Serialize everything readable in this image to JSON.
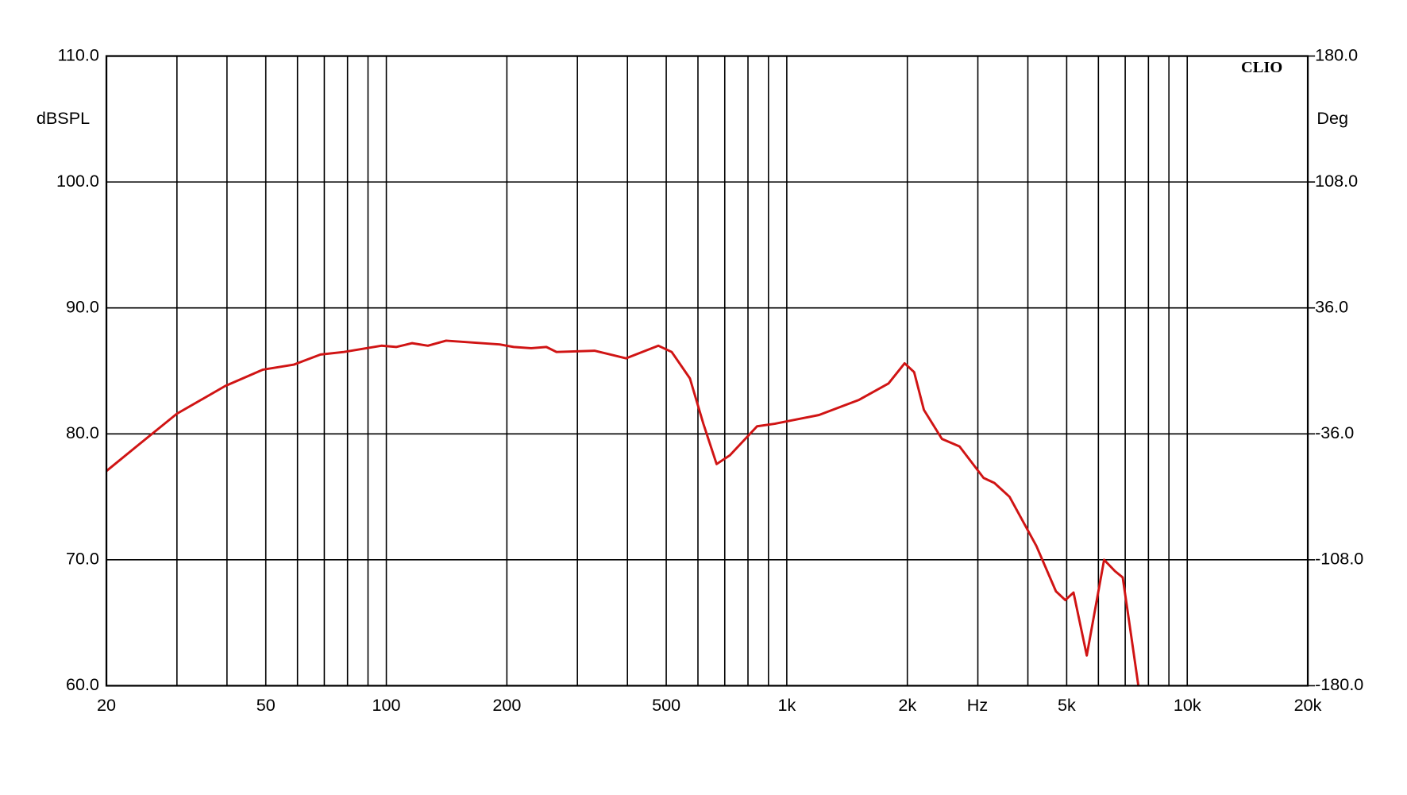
{
  "chart_data": {
    "type": "line",
    "y_label": "dBSPL",
    "y2_label": "Deg",
    "x_label": "Hz",
    "brand": "CLIO",
    "xscale": "log",
    "grid": true,
    "xlim": [
      20,
      20000
    ],
    "ylim": [
      60,
      110
    ],
    "y2lim": [
      -180,
      180
    ],
    "xticks": [
      20,
      50,
      100,
      200,
      500,
      {
        "value": 1000,
        "label": "1k"
      },
      {
        "value": 2000,
        "label": "2k"
      },
      {
        "value": 5000,
        "label": "5k"
      },
      {
        "value": 10000,
        "label": "10k"
      },
      {
        "value": 20000,
        "label": "20k"
      }
    ],
    "xgrid": [
      30,
      40,
      60,
      70,
      80,
      90,
      300,
      400,
      600,
      700,
      800,
      900,
      3000,
      4000,
      6000,
      7000,
      8000,
      9000
    ],
    "yticks": [
      {
        "value": 110,
        "label": "110.0"
      },
      {
        "value": 100,
        "label": "100.0"
      },
      {
        "value": 90,
        "label": "90.0"
      },
      {
        "value": 80,
        "label": "80.0"
      },
      {
        "value": 70,
        "label": "70.0"
      },
      {
        "value": 60,
        "label": "60.0"
      }
    ],
    "y2ticks": [
      {
        "value": 180,
        "label": "180.0"
      },
      {
        "value": 108,
        "label": "108.0"
      },
      {
        "value": 36,
        "label": "36.0"
      },
      {
        "value": -36,
        "label": "-36.0"
      },
      {
        "value": -108,
        "label": "-108.0"
      },
      {
        "value": -180,
        "label": "-180.0"
      }
    ],
    "x": [
      20,
      24.2,
      30,
      39.6,
      49.2,
      58.8,
      68.5,
      78.3,
      97.2,
      106,
      116,
      127,
      141,
      192,
      208,
      230,
      251,
      266,
      331,
      397,
      478,
      516,
      573,
      619,
      668,
      721,
      843,
      933,
      1204,
      1515,
      1795,
      1969,
      2080,
      2200,
      2440,
      2700,
      3100,
      3300,
      3600,
      4200,
      4700,
      4960,
      5200,
      5612,
      6200,
      6600,
      6900,
      7220,
      7550
    ],
    "series": [
      {
        "color": "#d01414",
        "values": [
          77.05,
          79.2,
          81.6,
          83.8,
          85.1,
          85.5,
          86.3,
          86.5,
          87.0,
          86.9,
          87.2,
          87.0,
          87.4,
          87.1,
          86.9,
          86.8,
          86.9,
          86.5,
          86.6,
          86.0,
          87.0,
          86.5,
          84.4,
          80.8,
          77.6,
          78.3,
          80.6,
          80.8,
          81.5,
          82.7,
          84.0,
          85.6,
          84.9,
          81.9,
          79.6,
          79.0,
          76.5,
          76.1,
          75.0,
          71.1,
          67.5,
          66.8,
          67.4,
          62.4,
          70.0,
          69.1,
          68.6,
          64.3,
          60.0
        ]
      }
    ]
  }
}
